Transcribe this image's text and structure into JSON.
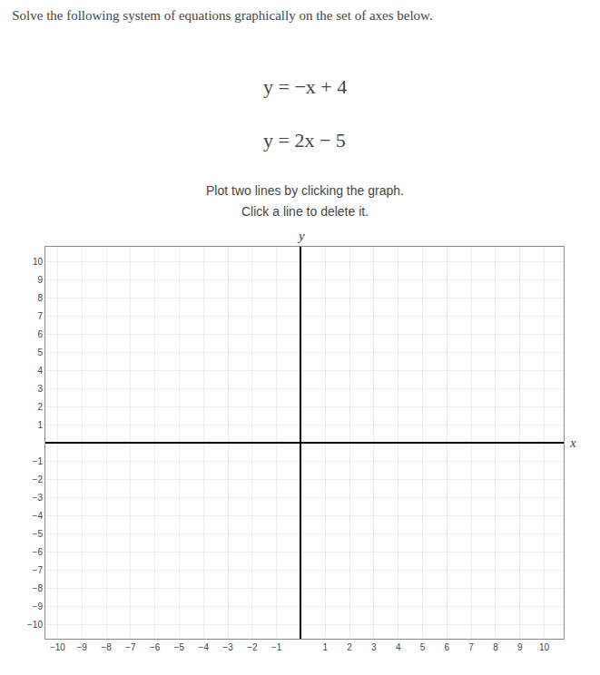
{
  "chart_data": {
    "type": "scatter",
    "title": "Solve the following system of equations graphically on the set of axes below.",
    "annotations": [
      "y = −x + 4",
      "y = 2x − 5",
      "Plot two lines by clicking the graph.",
      "Click a line to delete it."
    ],
    "x_label": "x",
    "y_label": "y",
    "xlim": [
      -10.5,
      10.8
    ],
    "ylim": [
      -10.8,
      10.8
    ],
    "xticks": [
      {
        "value": -10,
        "label": "−10"
      },
      {
        "value": -9,
        "label": "−9"
      },
      {
        "value": -8,
        "label": "−8"
      },
      {
        "value": -7,
        "label": "−7"
      },
      {
        "value": -6,
        "label": "−6"
      },
      {
        "value": -5,
        "label": "−5"
      },
      {
        "value": -4,
        "label": "−4"
      },
      {
        "value": -3,
        "label": "−3"
      },
      {
        "value": -2,
        "label": "−2"
      },
      {
        "value": -1,
        "label": "−1"
      },
      1,
      2,
      3,
      4,
      5,
      6,
      7,
      8,
      9,
      10
    ],
    "yticks": [
      {
        "value": -10,
        "label": "−10"
      },
      {
        "value": -9,
        "label": "−9"
      },
      {
        "value": -8,
        "label": "−8"
      },
      {
        "value": -7,
        "label": "−7"
      },
      {
        "value": -6,
        "label": "−6"
      },
      {
        "value": -5,
        "label": "−5"
      },
      {
        "value": -4,
        "label": "−4"
      },
      {
        "value": -3,
        "label": "−3"
      },
      {
        "value": -2,
        "label": "−2"
      },
      {
        "value": -1,
        "label": "−1"
      },
      1,
      2,
      3,
      4,
      5,
      6,
      7,
      8,
      9,
      10
    ],
    "grid": true
  }
}
